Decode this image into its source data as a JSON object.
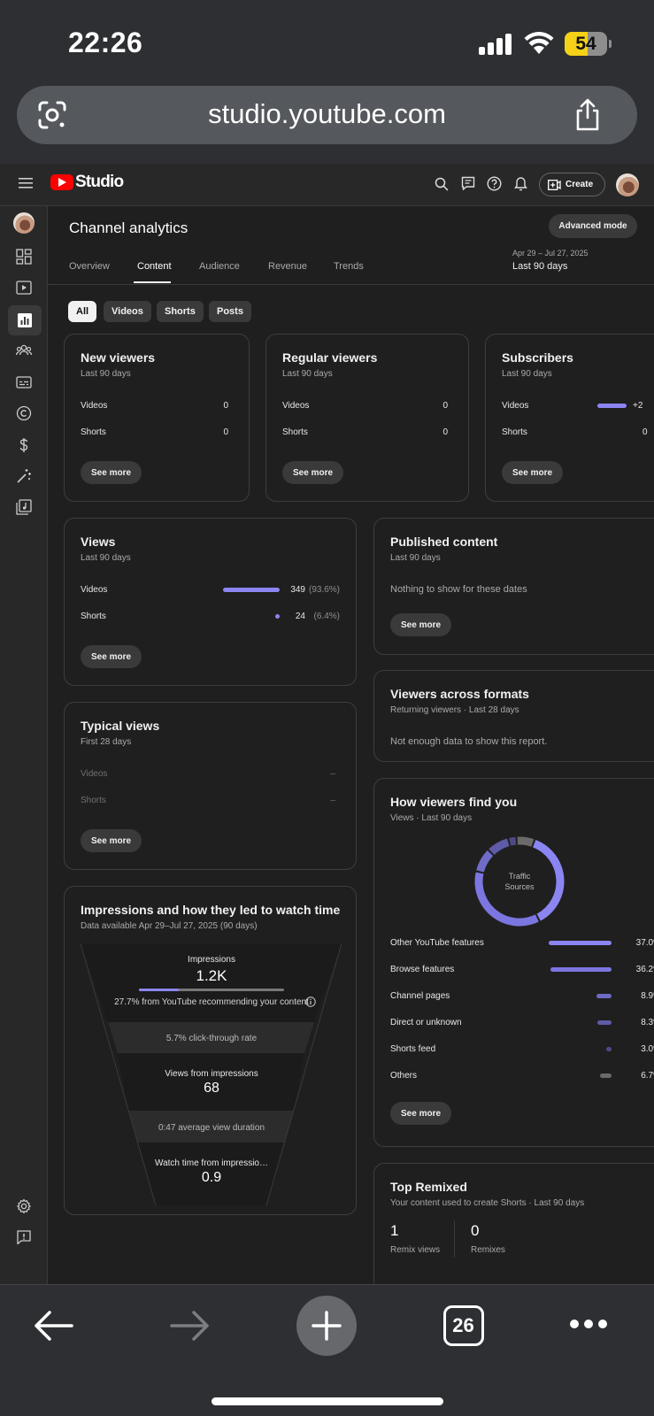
{
  "status": {
    "time": "22:26",
    "battery": "54"
  },
  "browser": {
    "url": "studio.youtube.com",
    "tabs_count": "26"
  },
  "header": {
    "logo_text": "Studio",
    "create_label": "Create"
  },
  "page": {
    "title": "Channel analytics",
    "advanced_label": "Advanced mode",
    "date_range": "Apr 29 – Jul 27, 2025",
    "period": "Last 90 days",
    "tabs": [
      "Overview",
      "Content",
      "Audience",
      "Revenue",
      "Trends"
    ],
    "active_tab": "Content",
    "chips": [
      "All",
      "Videos",
      "Shorts",
      "Posts"
    ],
    "active_chip": "All"
  },
  "cards": {
    "new_viewers": {
      "title": "New viewers",
      "sub": "Last 90 days",
      "videos_label": "Videos",
      "videos_val": "0",
      "shorts_label": "Shorts",
      "shorts_val": "0",
      "btn": "See more"
    },
    "regular_viewers": {
      "title": "Regular viewers",
      "sub": "Last 90 days",
      "videos_label": "Videos",
      "videos_val": "0",
      "shorts_label": "Shorts",
      "shorts_val": "0",
      "btn": "See more"
    },
    "subscribers": {
      "title": "Subscribers",
      "sub": "Last 90 days",
      "videos_label": "Videos",
      "videos_val": "+2",
      "shorts_label": "Shorts",
      "shorts_val": "0",
      "btn": "See more"
    },
    "views": {
      "title": "Views",
      "sub": "Last 90 days",
      "videos_label": "Videos",
      "videos_val": "349",
      "videos_pct": "(93.6%)",
      "videos_share": 0.936,
      "shorts_label": "Shorts",
      "shorts_val": "24",
      "shorts_pct": "(6.4%)",
      "shorts_share": 0.064,
      "btn": "See more"
    },
    "published": {
      "title": "Published content",
      "sub": "Last 90 days",
      "empty": "Nothing to show for these dates",
      "btn": "See more"
    },
    "formats": {
      "title": "Viewers across formats",
      "sub": "Returning viewers · Last 28 days",
      "empty": "Not enough data to show this report."
    },
    "typical": {
      "title": "Typical views",
      "sub": "First 28 days",
      "videos_label": "Videos",
      "videos_val": "–",
      "shorts_label": "Shorts",
      "shorts_val": "–",
      "btn": "See more"
    },
    "impressions": {
      "title": "Impressions and how they led to watch time",
      "sub": "Data available Apr 29–Jul 27, 2025 (90 days)",
      "impressions_label": "Impressions",
      "impressions_val": "1.2K",
      "recommend_text": "27.7% from YouTube recommending your content",
      "recommend_share": 0.277,
      "ctr_text": "5.7% click-through rate",
      "views_label": "Views from impressions",
      "views_val": "68",
      "duration_text": "0:47 average view duration",
      "watch_label": "Watch time from impressio…",
      "watch_val": "0.9"
    },
    "find_you": {
      "title": "How viewers find you",
      "sub": "Views · Last 90 days",
      "donut_label_1": "Traffic",
      "donut_label_2": "Sources",
      "sources": [
        {
          "name": "Other YouTube features",
          "pct": "37.0%",
          "value": 37.0,
          "color": "#8b85f2"
        },
        {
          "name": "Browse features",
          "pct": "36.2%",
          "value": 36.2,
          "color": "#7c76e0"
        },
        {
          "name": "Channel pages",
          "pct": "8.9%",
          "value": 8.9,
          "color": "#6f6bc7"
        },
        {
          "name": "Direct or unknown",
          "pct": "8.3%",
          "value": 8.3,
          "color": "#5f5ba8"
        },
        {
          "name": "Shorts feed",
          "pct": "3.0%",
          "value": 3.0,
          "color": "#4d4a86"
        },
        {
          "name": "Others",
          "pct": "6.7%",
          "value": 6.7,
          "color": "#6a6a6a"
        }
      ],
      "btn": "See more"
    },
    "remixed": {
      "title": "Top Remixed",
      "sub": "Your content used to create Shorts · Last 90 days",
      "remix_views_val": "1",
      "remix_views_label": "Remix views",
      "remixes_val": "0",
      "remixes_label": "Remixes"
    }
  }
}
